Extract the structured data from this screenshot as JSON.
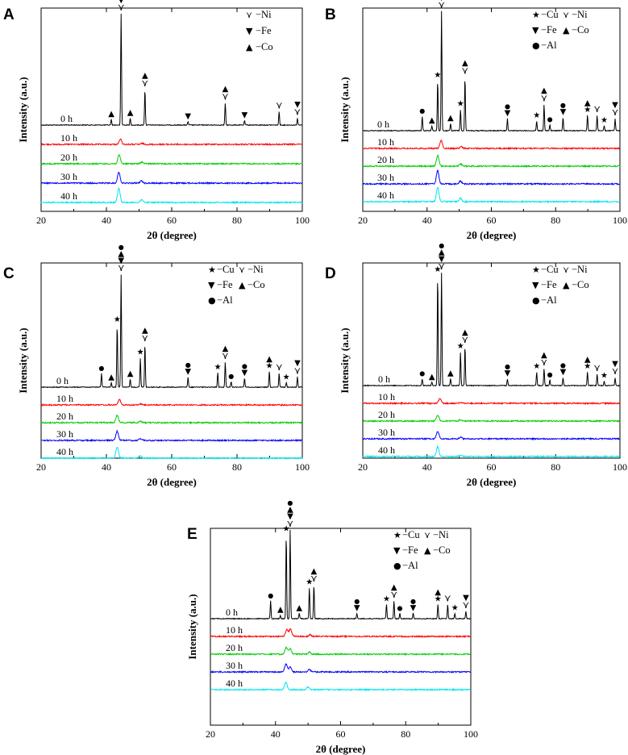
{
  "legend_items": {
    "Cu": {
      "symbol": "★",
      "label": "−Cu"
    },
    "Ni": {
      "symbol": "⋎",
      "label": "−Ni"
    },
    "Fe": {
      "symbol": "▼",
      "label": "−Fe"
    },
    "Co": {
      "symbol": "▲",
      "label": "−Co"
    },
    "Al": {
      "symbol": "●",
      "label": "−Al"
    }
  },
  "colors": {
    "0 h": "#000000",
    "10 h": "#ff0000",
    "20 h": "#00cc00",
    "30 h": "#0000ff",
    "40 h": "#00e5ee"
  },
  "chart_data": [
    {
      "panel": "A",
      "type": "line",
      "xlabel": "2θ  (degree)",
      "ylabel": "Intensity (a.u.)",
      "xlim": [
        20,
        100
      ],
      "xticks": [
        20,
        40,
        60,
        80,
        100
      ],
      "legend": [
        "Ni",
        "Fe",
        "Co"
      ],
      "series": [
        {
          "name": "0 h",
          "peaks": [
            [
              41.5,
              0.05
            ],
            [
              44.5,
              1.0
            ],
            [
              47.3,
              0.06
            ],
            [
              51.8,
              0.32
            ],
            [
              65.0,
              0.03
            ],
            [
              76.4,
              0.2
            ],
            [
              82.3,
              0.04
            ],
            [
              92.9,
              0.12
            ],
            [
              98.5,
              0.06
            ]
          ]
        },
        {
          "name": "10 h",
          "peaks": [
            [
              44.3,
              0.35
            ],
            [
              51.0,
              0.07
            ]
          ]
        },
        {
          "name": "20 h",
          "peaks": [
            [
              43.9,
              0.6
            ],
            [
              50.8,
              0.12
            ]
          ]
        },
        {
          "name": "30 h",
          "peaks": [
            [
              43.8,
              0.75
            ],
            [
              50.7,
              0.15
            ]
          ]
        },
        {
          "name": "40 h",
          "peaks": [
            [
              43.8,
              1.0
            ],
            [
              50.8,
              0.2
            ]
          ]
        }
      ],
      "annotations": [
        {
          "x": 41.5,
          "markers": [
            "Co"
          ]
        },
        {
          "x": 44.5,
          "markers": [
            "Co",
            "Fe",
            "Ni"
          ]
        },
        {
          "x": 47.3,
          "markers": [
            "Co"
          ]
        },
        {
          "x": 51.8,
          "markers": [
            "Co",
            "Ni"
          ]
        },
        {
          "x": 65.0,
          "markers": [
            "Fe"
          ]
        },
        {
          "x": 76.4,
          "markers": [
            "Co",
            "Ni"
          ]
        },
        {
          "x": 82.3,
          "markers": [
            "Fe"
          ]
        },
        {
          "x": 92.9,
          "markers": [
            "Ni"
          ]
        },
        {
          "x": 98.5,
          "markers": [
            "Fe",
            "Ni"
          ]
        }
      ]
    },
    {
      "panel": "B",
      "type": "line",
      "xlabel": "2θ  (degree)",
      "ylabel": "Intensity (a.u.)",
      "xlim": [
        20,
        100
      ],
      "xticks": [
        20,
        40,
        60,
        80,
        100
      ],
      "legend": [
        "Cu",
        "Ni",
        "Fe",
        "Co",
        "Al"
      ],
      "series": [
        {
          "name": "0 h",
          "peaks": [
            [
              38.5,
              0.12
            ],
            [
              41.5,
              0.04
            ],
            [
              43.3,
              0.42
            ],
            [
              44.5,
              1.0
            ],
            [
              47.3,
              0.06
            ],
            [
              50.4,
              0.18
            ],
            [
              51.8,
              0.45
            ],
            [
              65.0,
              0.1
            ],
            [
              74.1,
              0.08
            ],
            [
              76.4,
              0.22
            ],
            [
              78.2,
              0.05
            ],
            [
              82.3,
              0.11
            ],
            [
              89.9,
              0.13
            ],
            [
              92.9,
              0.13
            ],
            [
              95.1,
              0.04
            ],
            [
              98.5,
              0.1
            ]
          ]
        },
        {
          "name": "10 h",
          "peaks": [
            [
              44.4,
              0.6
            ],
            [
              50.6,
              0.12
            ]
          ]
        },
        {
          "name": "20 h",
          "peaks": [
            [
              43.3,
              0.8
            ],
            [
              50.4,
              0.18
            ]
          ]
        },
        {
          "name": "30 h",
          "peaks": [
            [
              43.3,
              1.0
            ],
            [
              50.4,
              0.22
            ]
          ]
        },
        {
          "name": "40 h",
          "peaks": [
            [
              43.3,
              1.1
            ],
            [
              50.4,
              0.25
            ]
          ]
        }
      ],
      "annotations": [
        {
          "x": 38.5,
          "markers": [
            "Al"
          ]
        },
        {
          "x": 41.5,
          "markers": [
            "Co"
          ]
        },
        {
          "x": 43.3,
          "markers": [
            "Cu"
          ]
        },
        {
          "x": 44.5,
          "markers": [
            "Al",
            "Co",
            "Fe",
            "Ni"
          ]
        },
        {
          "x": 47.3,
          "markers": [
            "Co"
          ]
        },
        {
          "x": 50.4,
          "markers": [
            "Cu"
          ]
        },
        {
          "x": 51.8,
          "markers": [
            "Co",
            "Ni"
          ]
        },
        {
          "x": 65.0,
          "markers": [
            "Al",
            "Fe"
          ]
        },
        {
          "x": 74.1,
          "markers": [
            "Cu"
          ]
        },
        {
          "x": 76.4,
          "markers": [
            "Co",
            "Ni"
          ]
        },
        {
          "x": 78.2,
          "markers": [
            "Al"
          ]
        },
        {
          "x": 82.3,
          "markers": [
            "Al",
            "Fe"
          ]
        },
        {
          "x": 89.9,
          "markers": [
            "Co",
            "Cu"
          ]
        },
        {
          "x": 92.9,
          "markers": [
            "Ni"
          ]
        },
        {
          "x": 95.1,
          "markers": [
            "Cu"
          ]
        },
        {
          "x": 98.5,
          "markers": [
            "Fe",
            "Ni"
          ]
        }
      ]
    },
    {
      "panel": "C",
      "type": "line",
      "xlabel": "2θ  (degree)",
      "ylabel": "Intensity (a.u.)",
      "xlim": [
        20,
        100
      ],
      "xticks": [
        20,
        40,
        60,
        80,
        100
      ],
      "legend": [
        "Cu",
        "Ni",
        "Fe",
        "Co",
        "Al"
      ],
      "series": [
        {
          "name": "0 h",
          "peaks": [
            [
              38.5,
              0.12
            ],
            [
              41.5,
              0.04
            ],
            [
              43.3,
              0.55
            ],
            [
              44.5,
              1.0
            ],
            [
              47.3,
              0.07
            ],
            [
              50.4,
              0.26
            ],
            [
              51.8,
              0.38
            ],
            [
              65.0,
              0.09
            ],
            [
              74.1,
              0.13
            ],
            [
              76.4,
              0.22
            ],
            [
              78.2,
              0.05
            ],
            [
              82.3,
              0.08
            ],
            [
              89.9,
              0.14
            ],
            [
              92.9,
              0.12
            ],
            [
              95.1,
              0.04
            ],
            [
              98.5,
              0.09
            ]
          ]
        },
        {
          "name": "10 h",
          "peaks": [
            [
              44.0,
              0.4
            ],
            [
              50.5,
              0.08
            ]
          ]
        },
        {
          "name": "20 h",
          "peaks": [
            [
              43.3,
              0.55
            ],
            [
              50.4,
              0.12
            ]
          ]
        },
        {
          "name": "30 h",
          "peaks": [
            [
              43.3,
              0.7
            ],
            [
              50.4,
              0.14
            ]
          ]
        },
        {
          "name": "40 h",
          "peaks": [
            [
              43.3,
              0.85
            ],
            [
              50.4,
              0.15
            ]
          ]
        }
      ],
      "annotations": [
        {
          "x": 38.5,
          "markers": [
            "Al"
          ]
        },
        {
          "x": 41.5,
          "markers": [
            "Co"
          ]
        },
        {
          "x": 43.3,
          "markers": [
            "Cu"
          ]
        },
        {
          "x": 44.5,
          "markers": [
            "Al",
            "Co",
            "Fe",
            "Ni"
          ]
        },
        {
          "x": 47.3,
          "markers": [
            "Co"
          ]
        },
        {
          "x": 50.4,
          "markers": [
            "Cu"
          ]
        },
        {
          "x": 51.8,
          "markers": [
            "Co",
            "Ni"
          ]
        },
        {
          "x": 65.0,
          "markers": [
            "Al",
            "Fe"
          ]
        },
        {
          "x": 74.1,
          "markers": [
            "Cu"
          ]
        },
        {
          "x": 76.4,
          "markers": [
            "Co",
            "Ni"
          ]
        },
        {
          "x": 78.2,
          "markers": [
            "Al"
          ]
        },
        {
          "x": 82.3,
          "markers": [
            "Al",
            "Fe"
          ]
        },
        {
          "x": 89.9,
          "markers": [
            "Co",
            "Cu"
          ]
        },
        {
          "x": 92.9,
          "markers": [
            "Ni"
          ]
        },
        {
          "x": 95.1,
          "markers": [
            "Cu"
          ]
        },
        {
          "x": 98.5,
          "markers": [
            "Fe",
            "Ni"
          ]
        }
      ]
    },
    {
      "panel": "D",
      "type": "line",
      "xlabel": "2θ  (degree)",
      "ylabel": "Intensity (a.u.)",
      "xlim": [
        20,
        100
      ],
      "xticks": [
        20,
        40,
        60,
        80,
        100
      ],
      "legend": [
        "Cu",
        "Ni",
        "Fe",
        "Co",
        "Al"
      ],
      "series": [
        {
          "name": "0 h",
          "peaks": [
            [
              38.5,
              0.06
            ],
            [
              41.5,
              0.03
            ],
            [
              43.3,
              0.98
            ],
            [
              44.5,
              1.0
            ],
            [
              47.3,
              0.06
            ],
            [
              50.4,
              0.3
            ],
            [
              51.8,
              0.35
            ],
            [
              65.0,
              0.06
            ],
            [
              74.1,
              0.12
            ],
            [
              76.4,
              0.15
            ],
            [
              78.2,
              0.05
            ],
            [
              82.3,
              0.07
            ],
            [
              89.9,
              0.12
            ],
            [
              92.9,
              0.1
            ],
            [
              95.1,
              0.04
            ],
            [
              98.5,
              0.07
            ]
          ]
        },
        {
          "name": "10 h",
          "peaks": [
            [
              44.0,
              0.35
            ],
            [
              50.5,
              0.07
            ]
          ]
        },
        {
          "name": "20 h",
          "peaks": [
            [
              43.3,
              0.45
            ],
            [
              50.4,
              0.1
            ]
          ]
        },
        {
          "name": "30 h",
          "peaks": [
            [
              43.3,
              0.55
            ],
            [
              50.4,
              0.12
            ]
          ]
        },
        {
          "name": "40 h",
          "peaks": [
            [
              43.3,
              0.75
            ],
            [
              50.4,
              0.14
            ]
          ]
        }
      ],
      "annotations": [
        {
          "x": 38.5,
          "markers": [
            "Al"
          ]
        },
        {
          "x": 41.5,
          "markers": [
            "Co"
          ]
        },
        {
          "x": 43.3,
          "markers": [
            "Cu"
          ]
        },
        {
          "x": 44.5,
          "markers": [
            "Al",
            "Co",
            "Fe",
            "Ni"
          ]
        },
        {
          "x": 47.3,
          "markers": [
            "Co"
          ]
        },
        {
          "x": 50.4,
          "markers": [
            "Cu"
          ]
        },
        {
          "x": 51.8,
          "markers": [
            "Co",
            "Ni"
          ]
        },
        {
          "x": 65.0,
          "markers": [
            "Al",
            "Fe"
          ]
        },
        {
          "x": 74.1,
          "markers": [
            "Cu"
          ]
        },
        {
          "x": 76.4,
          "markers": [
            "Co",
            "Ni"
          ]
        },
        {
          "x": 78.2,
          "markers": [
            "Al"
          ]
        },
        {
          "x": 82.3,
          "markers": [
            "Al",
            "Fe"
          ]
        },
        {
          "x": 89.9,
          "markers": [
            "Co",
            "Cu"
          ]
        },
        {
          "x": 92.9,
          "markers": [
            "Ni"
          ]
        },
        {
          "x": 95.1,
          "markers": [
            "Cu"
          ]
        },
        {
          "x": 98.5,
          "markers": [
            "Fe",
            "Ni"
          ]
        }
      ]
    },
    {
      "panel": "E",
      "type": "line",
      "xlabel": "2θ  (degree)",
      "ylabel": "Intensity (a.u.)",
      "xlim": [
        20,
        100
      ],
      "xticks": [
        20,
        40,
        60,
        80,
        100
      ],
      "legend": [
        "Cu",
        "Ni",
        "Fe",
        "Co",
        "Al"
      ],
      "series": [
        {
          "name": "0 h",
          "peaks": [
            [
              38.5,
              0.2
            ],
            [
              41.5,
              0.04
            ],
            [
              43.3,
              0.95
            ],
            [
              44.5,
              1.0
            ],
            [
              47.3,
              0.06
            ],
            [
              50.4,
              0.35
            ],
            [
              51.8,
              0.38
            ],
            [
              65.0,
              0.06
            ],
            [
              74.1,
              0.16
            ],
            [
              76.4,
              0.2
            ],
            [
              78.2,
              0.06
            ],
            [
              82.3,
              0.06
            ],
            [
              89.9,
              0.16
            ],
            [
              92.9,
              0.16
            ],
            [
              95.1,
              0.06
            ],
            [
              98.5,
              0.08
            ]
          ]
        },
        {
          "name": "10 h",
          "peaks": [
            [
              43.5,
              0.5
            ],
            [
              44.6,
              0.55
            ],
            [
              50.6,
              0.12
            ]
          ]
        },
        {
          "name": "20 h",
          "peaks": [
            [
              43.3,
              0.5
            ],
            [
              44.5,
              0.4
            ],
            [
              50.4,
              0.15
            ]
          ]
        },
        {
          "name": "30 h",
          "peaks": [
            [
              43.2,
              0.6
            ],
            [
              44.5,
              0.4
            ],
            [
              50.4,
              0.18
            ]
          ]
        },
        {
          "name": "40 h",
          "peaks": [
            [
              43.2,
              0.55
            ],
            [
              50.0,
              0.2
            ]
          ]
        }
      ],
      "annotations": [
        {
          "x": 38.5,
          "markers": [
            "Al"
          ]
        },
        {
          "x": 41.5,
          "markers": [
            "Co"
          ]
        },
        {
          "x": 43.3,
          "markers": [
            "Cu"
          ]
        },
        {
          "x": 44.5,
          "markers": [
            "Al",
            "Co",
            "Fe",
            "Ni"
          ]
        },
        {
          "x": 47.3,
          "markers": [
            "Co"
          ]
        },
        {
          "x": 50.4,
          "markers": [
            "Cu"
          ]
        },
        {
          "x": 51.8,
          "markers": [
            "Co",
            "Ni"
          ]
        },
        {
          "x": 65.0,
          "markers": [
            "Al",
            "Fe"
          ]
        },
        {
          "x": 74.1,
          "markers": [
            "Cu"
          ]
        },
        {
          "x": 76.4,
          "markers": [
            "Co",
            "Ni"
          ]
        },
        {
          "x": 78.2,
          "markers": [
            "Al"
          ]
        },
        {
          "x": 82.3,
          "markers": [
            "Al",
            "Fe"
          ]
        },
        {
          "x": 89.9,
          "markers": [
            "Co",
            "Cu"
          ]
        },
        {
          "x": 92.9,
          "markers": [
            "Ni"
          ]
        },
        {
          "x": 95.1,
          "markers": [
            "Cu"
          ]
        },
        {
          "x": 98.5,
          "markers": [
            "Fe",
            "Ni"
          ]
        }
      ]
    }
  ]
}
